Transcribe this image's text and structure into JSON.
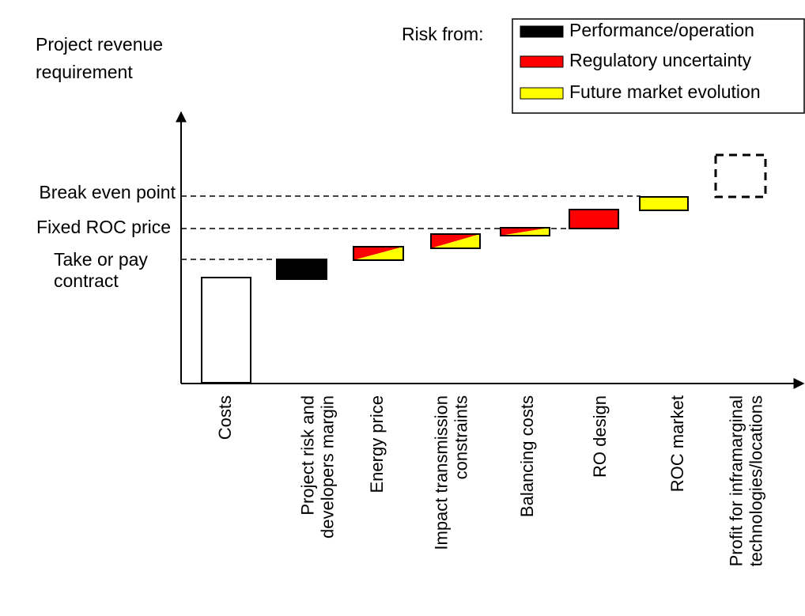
{
  "title_lines": [
    "Project revenue",
    "requirement"
  ],
  "legend": {
    "heading": "Risk from:",
    "items": [
      "Performance/operation",
      "Regulatory uncertainty",
      "Future market evolution"
    ]
  },
  "reference_lines": [
    [
      "Break even point"
    ],
    [
      "Fixed ROC price"
    ],
    [
      "Take or pay",
      "contract"
    ]
  ],
  "categories": [
    [
      "Costs"
    ],
    [
      "Project risk and",
      "developers margin"
    ],
    [
      "Energy price"
    ],
    [
      "Impact transmission",
      "constraints"
    ],
    [
      "Balancing costs"
    ],
    [
      "RO design"
    ],
    [
      "ROC market"
    ],
    [
      "Profit for inframarginal",
      "technologies/locations"
    ]
  ]
}
